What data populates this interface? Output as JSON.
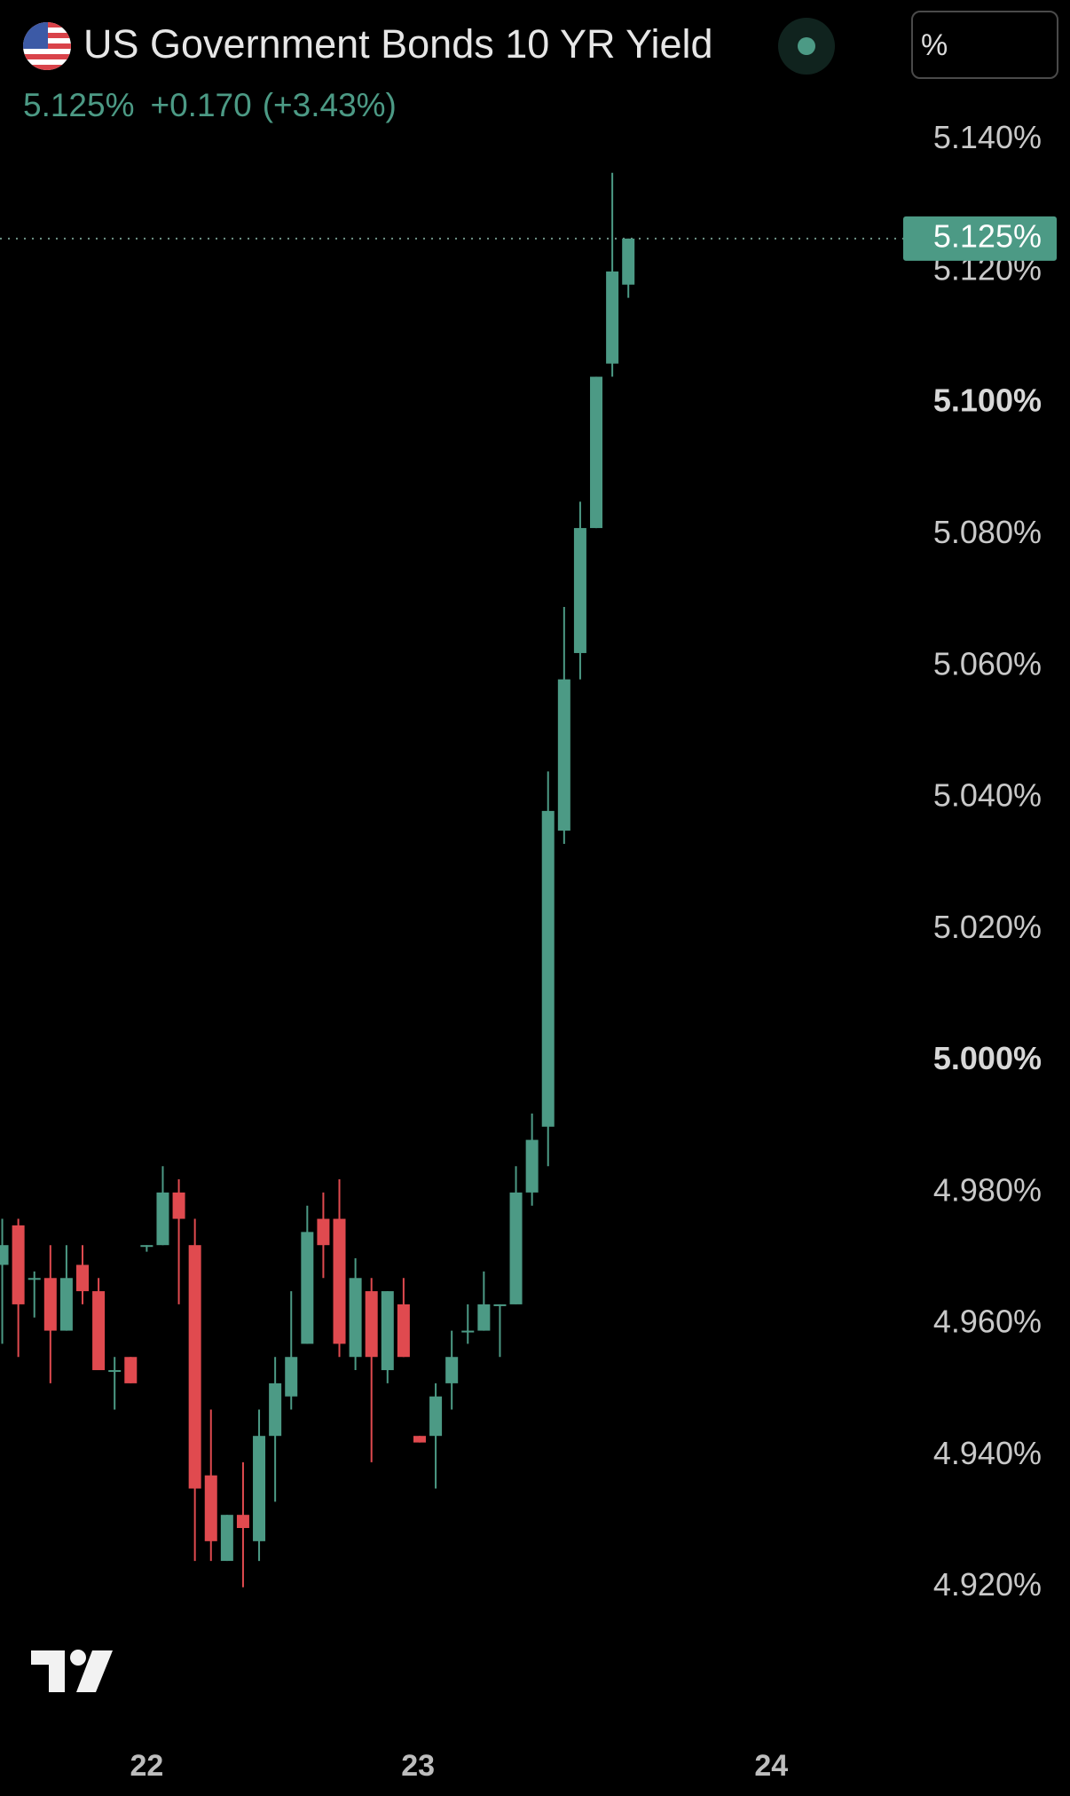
{
  "chart_data": {
    "type": "candlestick",
    "title": "US Government Bonds 10 YR Yield",
    "price": "5.125%",
    "change": "+0.170",
    "change_pct": "(+3.43%)",
    "unit_selector": "%",
    "up_color": "#4c9a85",
    "down_color": "#e04a4f",
    "grid": false,
    "x": [
      0,
      1,
      2,
      3,
      4,
      5,
      6,
      7,
      8,
      9,
      10,
      11,
      12,
      13,
      14,
      15,
      16,
      17,
      18,
      19,
      20,
      21,
      22,
      23,
      24,
      25,
      26,
      27,
      28,
      29,
      30,
      31,
      32,
      33,
      34,
      35,
      36,
      37,
      38,
      39
    ],
    "open": [
      4.969,
      4.975,
      4.967,
      4.967,
      4.959,
      4.969,
      4.965,
      4.953,
      4.955,
      4.972,
      4.972,
      4.98,
      4.972,
      4.937,
      4.924,
      4.931,
      4.927,
      4.943,
      4.949,
      4.957,
      4.976,
      4.976,
      4.955,
      4.965,
      4.953,
      4.963,
      4.943,
      4.943,
      4.951,
      4.959,
      4.959,
      4.963,
      4.963,
      4.98,
      4.99,
      5.035,
      5.062,
      5.081,
      5.106,
      5.118
    ],
    "high": [
      4.976,
      4.976,
      4.968,
      4.972,
      4.972,
      4.972,
      4.967,
      4.955,
      4.955,
      4.972,
      4.984,
      4.982,
      4.976,
      4.947,
      4.931,
      4.939,
      4.947,
      4.955,
      4.965,
      4.978,
      4.98,
      4.982,
      4.97,
      4.967,
      4.965,
      4.967,
      4.943,
      4.951,
      4.959,
      4.963,
      4.968,
      4.963,
      4.984,
      4.992,
      5.044,
      5.069,
      5.085,
      5.104,
      5.135,
      5.125
    ],
    "low": [
      4.957,
      4.955,
      4.961,
      4.951,
      4.959,
      4.963,
      4.953,
      4.947,
      4.951,
      4.971,
      4.972,
      4.963,
      4.924,
      4.924,
      4.924,
      4.92,
      4.924,
      4.933,
      4.947,
      4.957,
      4.967,
      4.955,
      4.953,
      4.939,
      4.951,
      4.955,
      4.942,
      4.935,
      4.947,
      4.957,
      4.959,
      4.955,
      4.963,
      4.978,
      4.984,
      5.033,
      5.058,
      5.081,
      5.104,
      5.116
    ],
    "close": [
      4.972,
      4.963,
      4.967,
      4.959,
      4.967,
      4.965,
      4.953,
      4.953,
      4.951,
      4.972,
      4.98,
      4.976,
      4.935,
      4.927,
      4.931,
      4.929,
      4.943,
      4.951,
      4.955,
      4.974,
      4.972,
      4.957,
      4.967,
      4.955,
      4.965,
      4.955,
      4.942,
      4.949,
      4.955,
      4.959,
      4.963,
      4.963,
      4.98,
      4.988,
      5.038,
      5.058,
      5.081,
      5.104,
      5.12,
      5.125
    ],
    "xlim": [
      -0.14,
      55.9
    ],
    "xticks": [
      {
        "value": 9,
        "label": "22"
      },
      {
        "value": 25.9,
        "label": "23"
      },
      {
        "value": 47.9,
        "label": "24"
      }
    ],
    "ylim": [
      4.9,
      5.144
    ],
    "yticks": [
      {
        "value": 5.14,
        "label": "5.140%"
      },
      {
        "value": 5.12,
        "label": "5.120%"
      },
      {
        "value": 5.1,
        "label": "5.100%"
      },
      {
        "value": 5.08,
        "label": "5.080%"
      },
      {
        "value": 5.06,
        "label": "5.060%"
      },
      {
        "value": 5.04,
        "label": "5.040%"
      },
      {
        "value": 5.02,
        "label": "5.020%"
      },
      {
        "value": 5.0,
        "label": "5.000%"
      },
      {
        "value": 4.98,
        "label": "4.980%"
      },
      {
        "value": 4.96,
        "label": "4.960%"
      },
      {
        "value": 4.94,
        "label": "4.940%"
      },
      {
        "value": 4.92,
        "label": "4.920%"
      }
    ],
    "last_price": {
      "value": 5.125,
      "label": "5.125%"
    }
  }
}
